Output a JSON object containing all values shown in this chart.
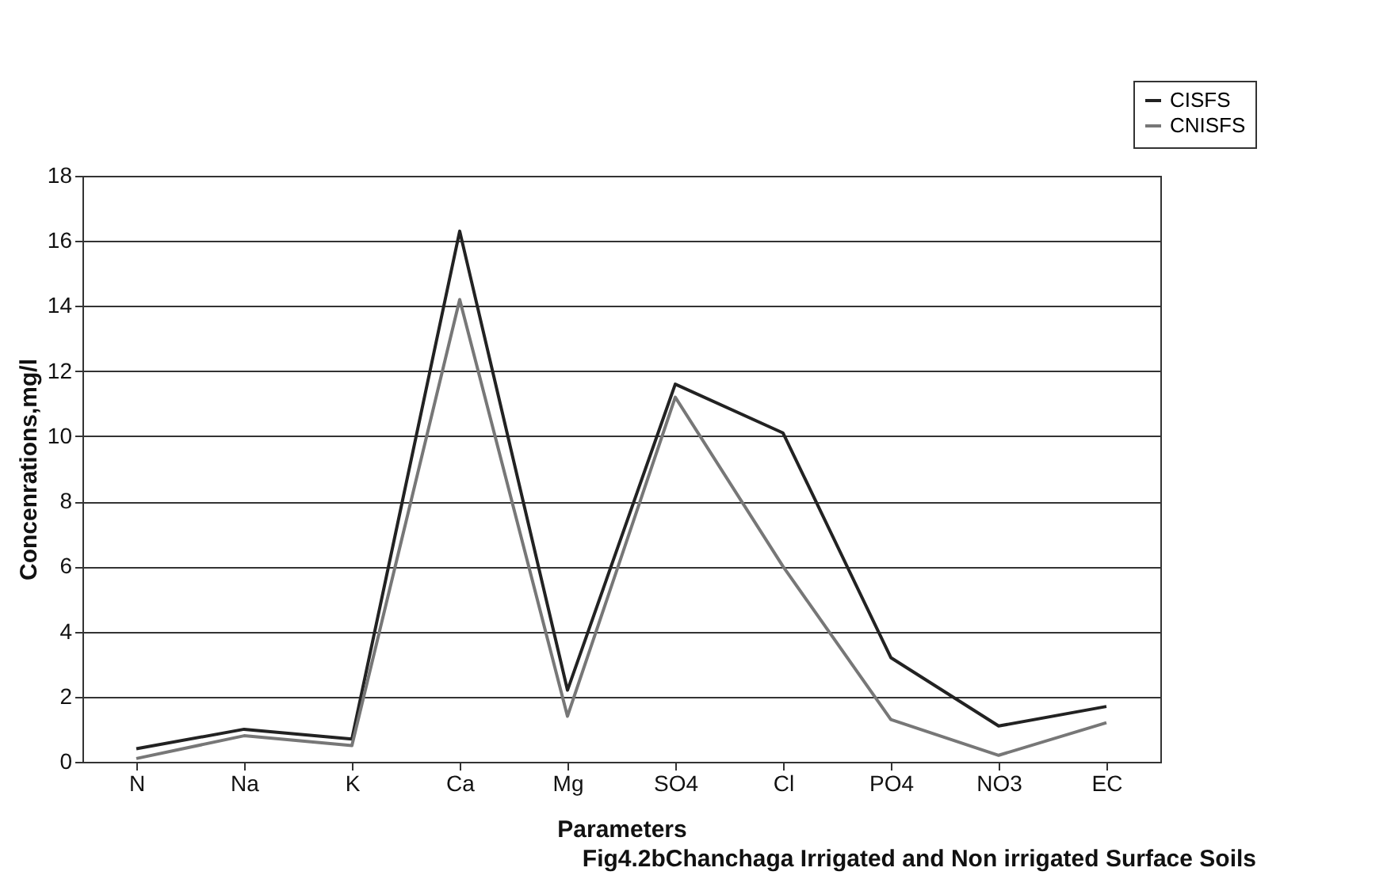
{
  "chart_data": {
    "type": "line",
    "xlabel": "Parameters",
    "ylabel": "Concenrations,mg/l",
    "categories": [
      "N",
      "Na",
      "K",
      "Ca",
      "Mg",
      "SO4",
      "Cl",
      "PO4",
      "NO3",
      "EC"
    ],
    "series": [
      {
        "name": "CISFS",
        "color": "#222222",
        "values": [
          0.4,
          1.0,
          0.7,
          16.3,
          2.2,
          11.6,
          10.1,
          3.2,
          1.1,
          1.7
        ]
      },
      {
        "name": "CNISFS",
        "color": "#777777",
        "values": [
          0.1,
          0.8,
          0.5,
          14.2,
          1.4,
          11.2,
          6.0,
          1.3,
          0.2,
          1.2
        ]
      }
    ],
    "ylim": [
      0,
      18
    ],
    "yticks": [
      0,
      2,
      4,
      6,
      8,
      10,
      12,
      14,
      16,
      18
    ],
    "grid": "y",
    "legend": "top right",
    "marker": "none",
    "line_style": "solid",
    "annotations": [
      "Fig4.2bChanchaga Irrigated and Non irrigated Surface Soils"
    ]
  }
}
